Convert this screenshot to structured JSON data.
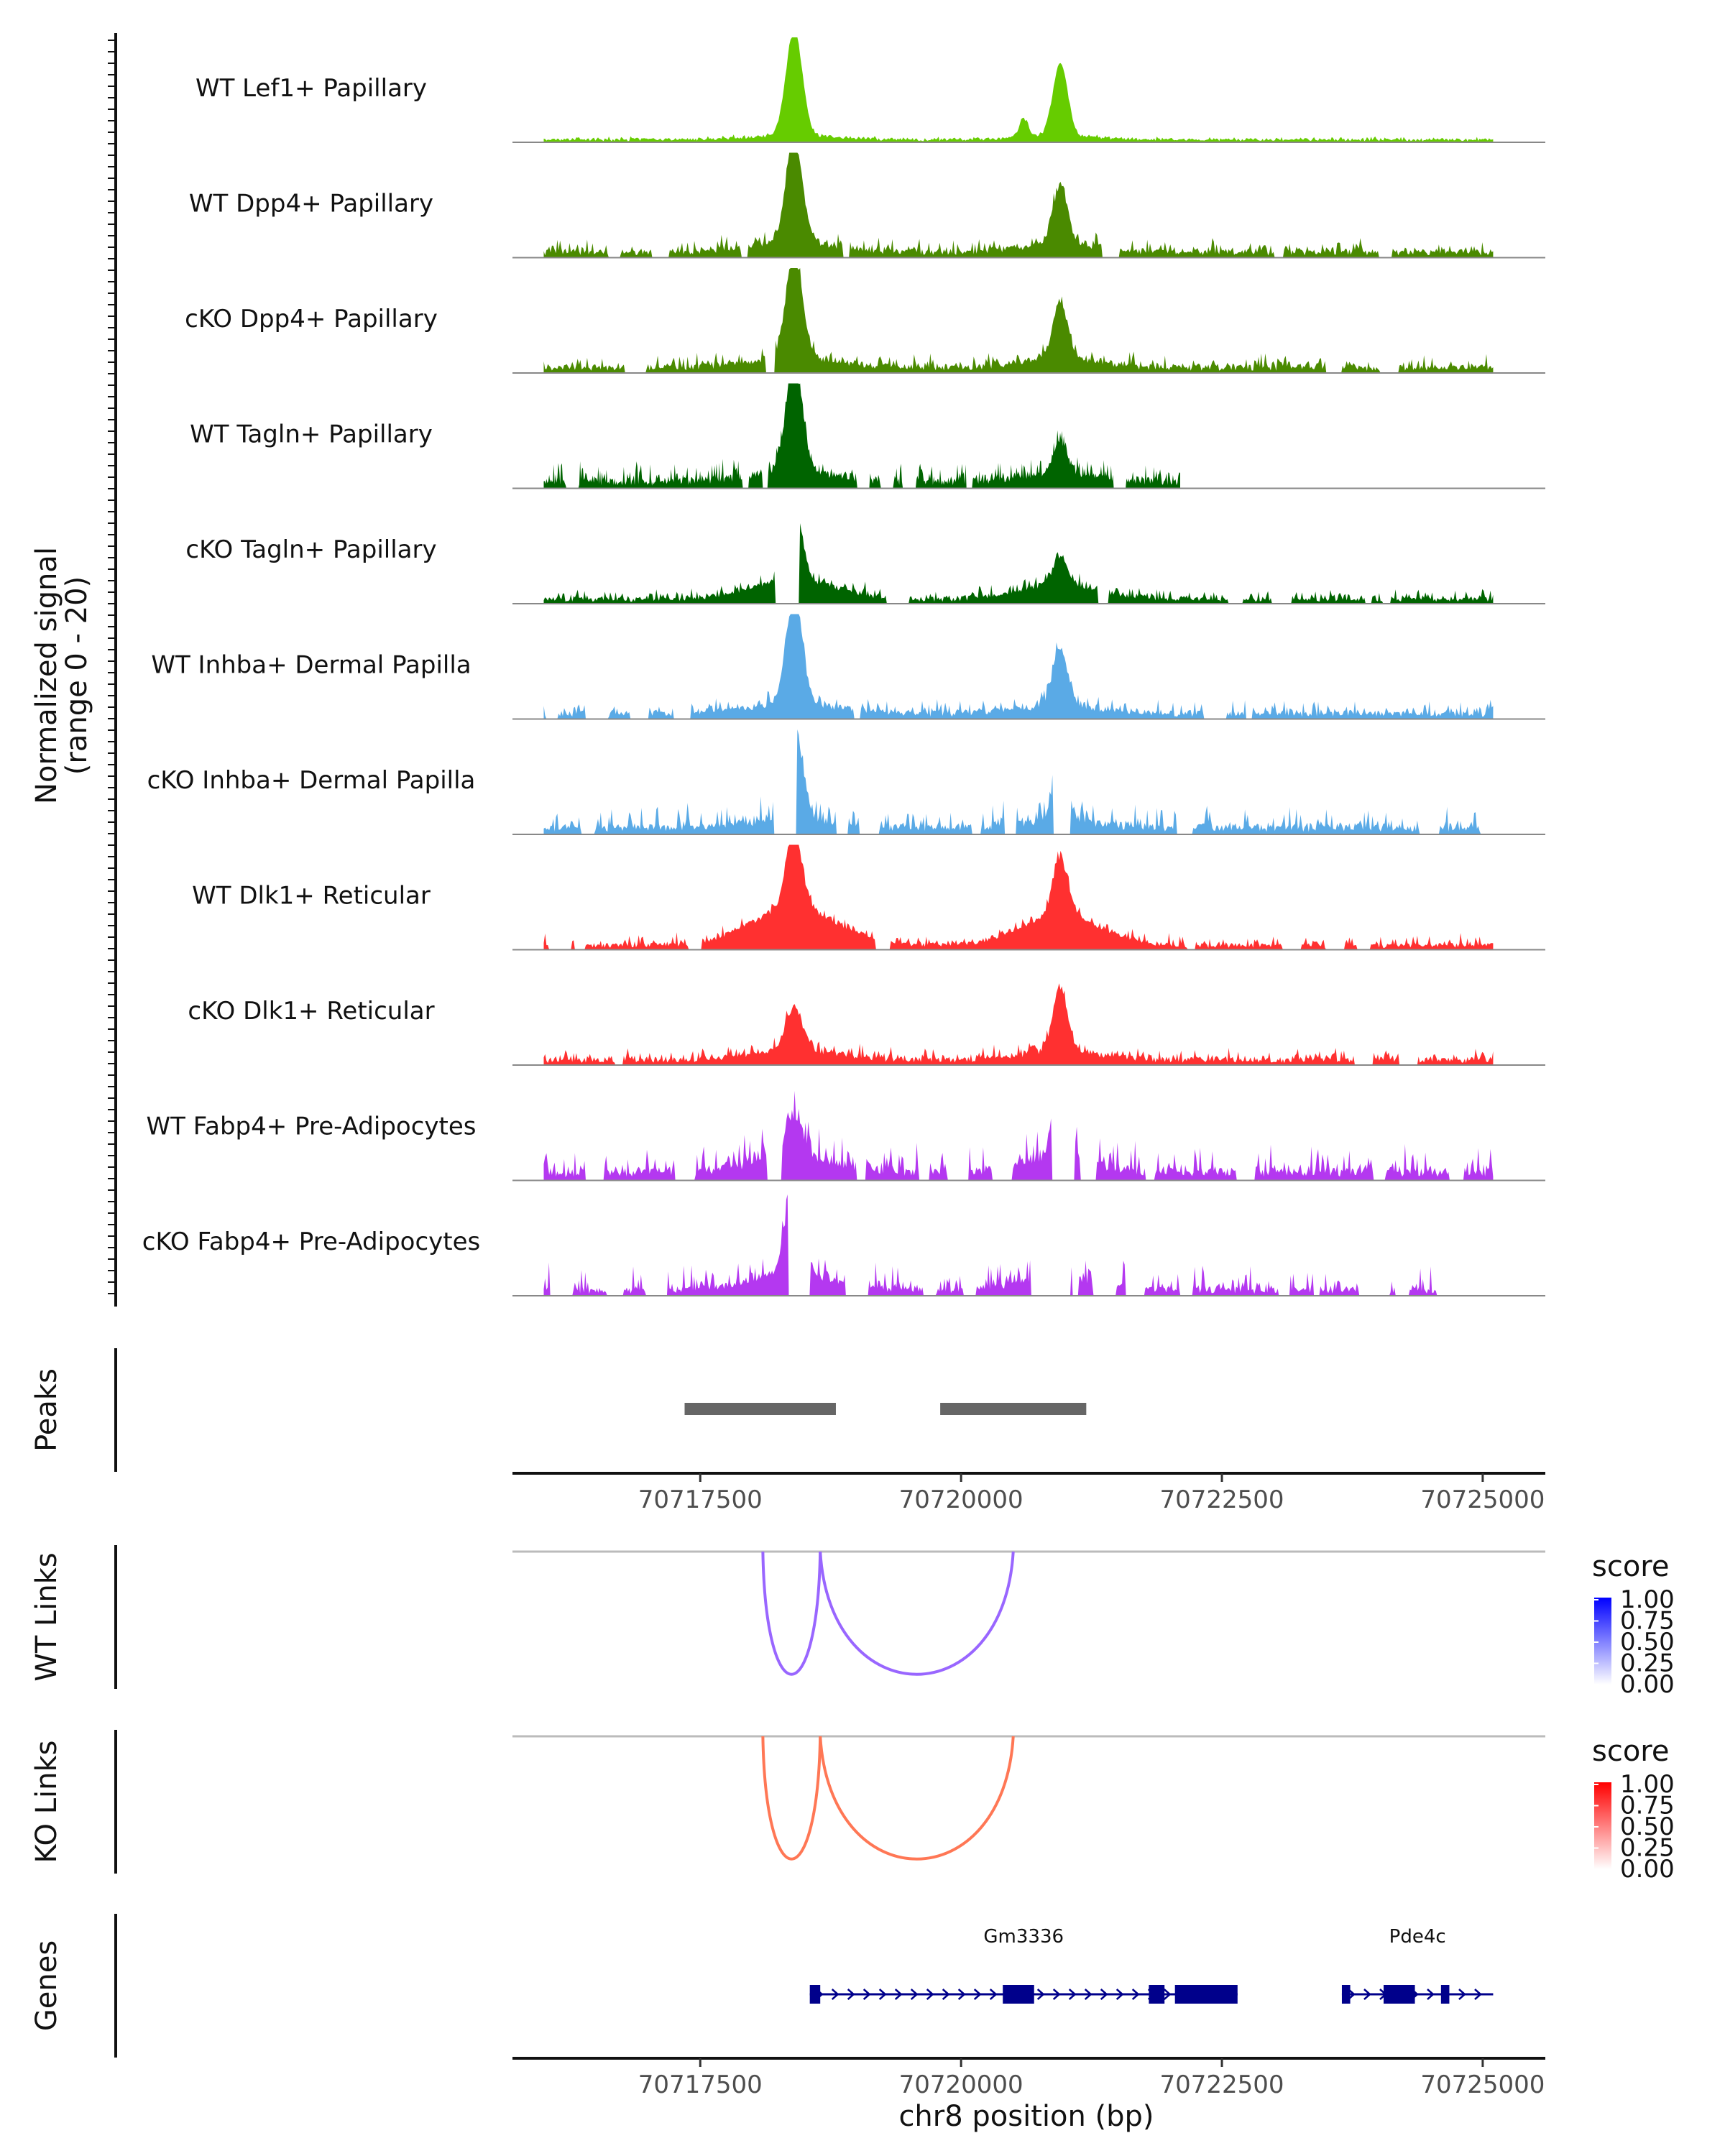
{
  "chart_data": {
    "type": "area",
    "region": "chr8:70716000-70725000",
    "x_range": [
      70715700,
      70725600
    ],
    "signal_y_label_line1": "Normalized signal",
    "signal_y_label_line2": "(range 0 - 20)",
    "y_range": [
      0,
      20
    ],
    "tracks": [
      {
        "name": "WT Lef1+ Papillary",
        "color": "#66cc00",
        "profile": "lef1"
      },
      {
        "name": "WT Dpp4+ Papillary",
        "color": "#4a8a00",
        "profile": "mid"
      },
      {
        "name": "cKO Dpp4+ Papillary",
        "color": "#4a8a00",
        "profile": "mid"
      },
      {
        "name": "WT Tagln+ Papillary",
        "color": "#006400",
        "profile": "tagln"
      },
      {
        "name": "cKO Tagln+ Papillary",
        "color": "#006400",
        "profile": "mid2"
      },
      {
        "name": "WT Inhba+ Dermal Papilla",
        "color": "#5aaae6",
        "profile": "mid"
      },
      {
        "name": "cKO Inhba+ Dermal Papilla",
        "color": "#5aaae6",
        "profile": "spiky"
      },
      {
        "name": "WT Dlk1+ Reticular",
        "color": "#ff3030",
        "profile": "dlk"
      },
      {
        "name": "cKO Dlk1+ Reticular",
        "color": "#ff3030",
        "profile": "dlk2"
      },
      {
        "name": "WT Fabp4+ Pre-Adipocytes",
        "color": "#b438f0",
        "profile": "fabp"
      },
      {
        "name": "cKO Fabp4+ Pre-Adipocytes",
        "color": "#b438f0",
        "profile": "fabp2"
      }
    ],
    "peaks_label": "Peaks",
    "peaks": [
      [
        70717350,
        70718800
      ],
      [
        70719800,
        70721200
      ]
    ],
    "axis_ticks": [
      70717500,
      70720000,
      70722500,
      70725000
    ],
    "axis_tick_labels": [
      "70717500",
      "70720000",
      "70722500",
      "70725000"
    ],
    "wt_links_label": "WT Links",
    "ko_links_label": "KO Links",
    "links": [
      [
        70718100,
        70718650
      ],
      [
        70718650,
        70720500
      ]
    ],
    "link_depths": [
      0.92,
      0.92
    ],
    "wt_link_color": "#9966ff",
    "ko_link_color": "#ff7755",
    "legend_title": "score",
    "legend_ticks": [
      "1.00",
      "0.75",
      "0.50",
      "0.25",
      "0.00"
    ],
    "wt_legend_colors": [
      "#ffffff",
      "#0000ff"
    ],
    "ko_legend_colors": [
      "#ffffff",
      "#ff0000"
    ],
    "genes_label": "Genes",
    "genes": [
      {
        "name": "Gm3336",
        "start": 70718550,
        "end": 70722650,
        "strand": "+",
        "exons": [
          [
            70718550,
            70718650
          ],
          [
            70720400,
            70720700
          ],
          [
            70721800,
            70721950
          ],
          [
            70722050,
            70722650
          ]
        ]
      },
      {
        "name": "Pde4c",
        "start": 70723650,
        "end": 70725100,
        "strand": "+",
        "exons": [
          [
            70723650,
            70723730
          ],
          [
            70724050,
            70724350
          ],
          [
            70724600,
            70724680
          ]
        ]
      }
    ],
    "gene_color": "#00008b",
    "x_axis_label": "chr8 position (bp)"
  }
}
